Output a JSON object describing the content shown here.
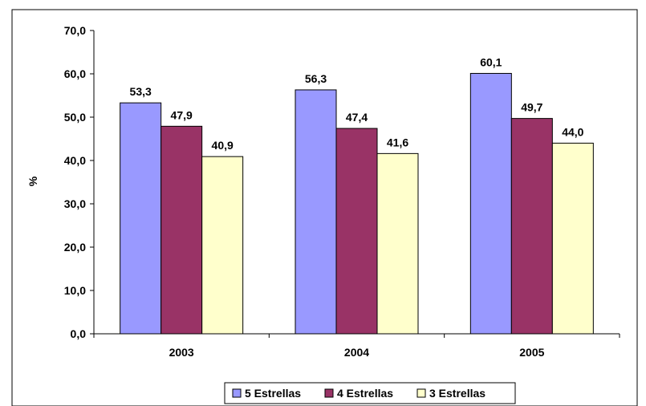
{
  "chart_data": {
    "type": "bar",
    "categories": [
      "2003",
      "2004",
      "2005"
    ],
    "series": [
      {
        "name": "5 Estrellas",
        "values": [
          53.3,
          56.3,
          60.1
        ],
        "color": "#9999ff",
        "labels": [
          "53,3",
          "56,3",
          "60,1"
        ]
      },
      {
        "name": "4 Estrellas",
        "values": [
          47.9,
          47.4,
          49.7
        ],
        "color": "#993366",
        "labels": [
          "47,9",
          "47,4",
          "49,7"
        ]
      },
      {
        "name": "3 Estrellas",
        "values": [
          40.9,
          41.6,
          44.0
        ],
        "color": "#ffffcc",
        "labels": [
          "40,9",
          "41,6",
          "44,0"
        ]
      }
    ],
    "ylabel": "%",
    "xlabel": "",
    "title": "",
    "ylim": [
      0,
      70
    ],
    "yticks": [
      0,
      10,
      20,
      30,
      40,
      50,
      60,
      70
    ],
    "ytick_labels": [
      "0,0",
      "10,0",
      "20,0",
      "30,0",
      "40,0",
      "50,0",
      "60,0",
      "70,0"
    ],
    "grid": false,
    "legend_position": "bottom"
  }
}
